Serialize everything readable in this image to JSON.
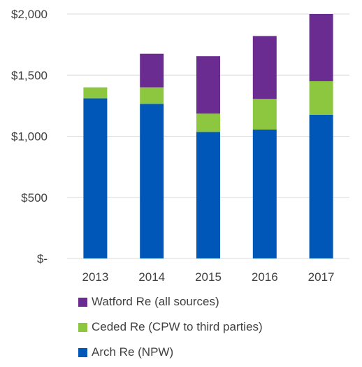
{
  "chart_data": {
    "type": "bar",
    "stacked": true,
    "categories": [
      "2013",
      "2014",
      "2015",
      "2016",
      "2017"
    ],
    "series": [
      {
        "name": "Arch Re (NPW)",
        "color": "#0057B8",
        "values": [
          1310,
          1265,
          1035,
          1055,
          1175
        ]
      },
      {
        "name": "Ceded Re (CPW to third parties)",
        "color": "#8DC63F",
        "values": [
          90,
          135,
          150,
          250,
          275
        ]
      },
      {
        "name": "Watford Re (all sources)",
        "color": "#6A2C91",
        "values": [
          0,
          275,
          470,
          515,
          550
        ]
      }
    ],
    "ylim": [
      0,
      2000
    ],
    "yticks": [
      0,
      500,
      1000,
      1500,
      2000
    ],
    "ytick_labels": [
      "$-",
      "$500",
      "$1,000",
      "$1,500",
      "$2,000"
    ],
    "grid": true,
    "legend_position": "bottom",
    "legend_order": [
      "Watford Re (all sources)",
      "Ceded Re (CPW to third parties)",
      "Arch Re (NPW)"
    ],
    "title": "",
    "xlabel": "",
    "ylabel": ""
  }
}
